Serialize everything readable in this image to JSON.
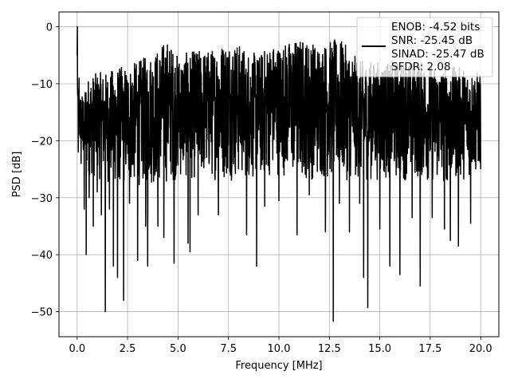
{
  "chart_data": {
    "type": "line",
    "title": "",
    "xlabel": "Frequency [MHz]",
    "ylabel": "PSD [dB]",
    "xlim": [
      -0.9,
      20.9
    ],
    "ylim": [
      -54.4,
      2.6
    ],
    "xticks": [
      "0.0",
      "2.5",
      "5.0",
      "7.5",
      "10.0",
      "12.5",
      "15.0",
      "17.5",
      "20.0"
    ],
    "yticks": [
      "0",
      "−10",
      "−20",
      "−30",
      "−40",
      "−50"
    ],
    "grid": true,
    "legend_position": "top-right",
    "series_color": "#000000",
    "series": [
      {
        "name": "",
        "x_range": [
          0,
          20
        ],
        "n_points": 2049,
        "points": [
          [
            0.0,
            -5
          ],
          [
            0.01,
            0
          ],
          [
            0.03,
            -12
          ],
          [
            0.06,
            -22
          ],
          [
            0.1,
            -9
          ],
          [
            0.2,
            -24
          ],
          [
            0.28,
            -20
          ],
          [
            0.35,
            -32
          ],
          [
            0.45,
            -40
          ],
          [
            0.6,
            -30
          ],
          [
            0.8,
            -35
          ],
          [
            1.0,
            -29
          ],
          [
            1.2,
            -33
          ],
          [
            1.4,
            -50
          ],
          [
            1.6,
            -32
          ],
          [
            1.8,
            -42
          ],
          [
            2.0,
            -44
          ],
          [
            2.3,
            -48
          ],
          [
            2.6,
            -31
          ],
          [
            3.0,
            -41
          ],
          [
            3.4,
            -35
          ],
          [
            3.5,
            -42
          ],
          [
            4.0,
            -35
          ],
          [
            4.3,
            -37
          ],
          [
            4.8,
            -41.5
          ],
          [
            5.5,
            -38
          ],
          [
            5.6,
            -39.5
          ],
          [
            6.0,
            -33
          ],
          [
            7.0,
            -33
          ],
          [
            7.6,
            -26
          ],
          [
            8.4,
            -36.5
          ],
          [
            8.9,
            -42
          ],
          [
            9.3,
            -31.5
          ],
          [
            10.0,
            -30.5
          ],
          [
            10.9,
            -36.5
          ],
          [
            11.5,
            -29.5
          ],
          [
            12.3,
            -36
          ],
          [
            12.7,
            -51.7
          ],
          [
            13.0,
            -31
          ],
          [
            13.5,
            -36
          ],
          [
            14.0,
            -31
          ],
          [
            14.2,
            -44
          ],
          [
            14.4,
            -49.3
          ],
          [
            15.0,
            -35.5
          ],
          [
            15.5,
            -42
          ],
          [
            16.0,
            -43.5
          ],
          [
            16.6,
            -33.5
          ],
          [
            17.0,
            -45.5
          ],
          [
            17.6,
            -33.5
          ],
          [
            18.2,
            -35.5
          ],
          [
            18.5,
            -37.5
          ],
          [
            18.9,
            -38.5
          ],
          [
            19.5,
            -34.5
          ],
          [
            20.0,
            -25
          ]
        ],
        "upper_envelope": [
          [
            0.0,
            -5
          ],
          [
            0.05,
            -10
          ],
          [
            0.2,
            -12
          ],
          [
            0.5,
            -9
          ],
          [
            1.0,
            -8
          ],
          [
            1.5,
            -8
          ],
          [
            2.0,
            -7
          ],
          [
            2.5,
            -7
          ],
          [
            3.0,
            -6
          ],
          [
            3.5,
            -5
          ],
          [
            4.0,
            -4
          ],
          [
            4.4,
            -2
          ],
          [
            5.0,
            -5
          ],
          [
            6.0,
            -4
          ],
          [
            6.6,
            -4
          ],
          [
            7.0,
            -3
          ],
          [
            7.6,
            -2
          ],
          [
            8.0,
            -3
          ],
          [
            9.0,
            -5
          ],
          [
            9.5,
            -3
          ],
          [
            10.0,
            -3
          ],
          [
            11.0,
            -2
          ],
          [
            11.2,
            -2
          ],
          [
            12.0,
            -3
          ],
          [
            13.0,
            -2
          ],
          [
            14.0,
            -6
          ],
          [
            15.0,
            -6
          ],
          [
            16.0,
            -6
          ],
          [
            17.0,
            -6
          ],
          [
            18.0,
            -7
          ],
          [
            19.0,
            -7
          ],
          [
            20.0,
            -8
          ]
        ],
        "lower_envelope": [
          [
            0.0,
            -18
          ],
          [
            0.2,
            -24
          ],
          [
            0.5,
            -26
          ],
          [
            1.0,
            -27
          ],
          [
            2.0,
            -28
          ],
          [
            3.0,
            -28
          ],
          [
            4.0,
            -28
          ],
          [
            5.0,
            -27
          ],
          [
            6.0,
            -27
          ],
          [
            7.0,
            -27
          ],
          [
            8.0,
            -27
          ],
          [
            9.0,
            -27
          ],
          [
            10.0,
            -26
          ],
          [
            11.0,
            -27
          ],
          [
            12.0,
            -27
          ],
          [
            13.0,
            -27
          ],
          [
            14.0,
            -27
          ],
          [
            15.0,
            -27
          ],
          [
            16.0,
            -27
          ],
          [
            17.0,
            -27
          ],
          [
            18.0,
            -28
          ],
          [
            19.0,
            -27
          ],
          [
            20.0,
            -26
          ]
        ]
      }
    ],
    "legend": [
      "ENOB: -4.52 bits",
      "SNR: -25.45 dB",
      "SINAD: -25.47 dB",
      "SFDR: 2.08"
    ]
  }
}
